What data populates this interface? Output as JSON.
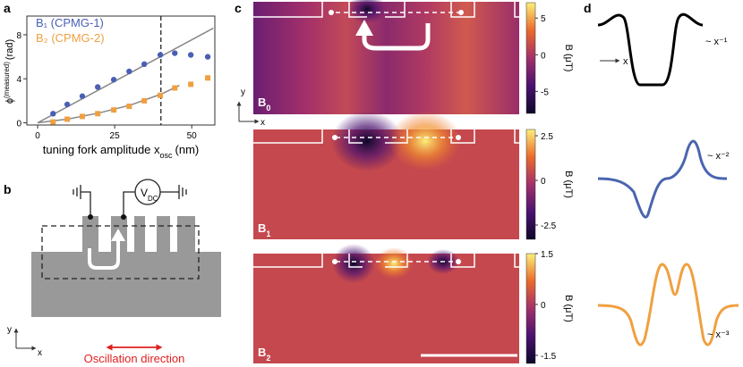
{
  "panel_labels": [
    "a",
    "b",
    "c",
    "d"
  ],
  "chart_data": [
    {
      "type": "scatter",
      "series": [
        {
          "name": "B₁ (CPMG-1)",
          "color": "#4a5fb5",
          "marker": "circle",
          "x": [
            5,
            9.6,
            14.5,
            19.5,
            24.7,
            29.7,
            34.6,
            39.8,
            44.5,
            49.7,
            55.2
          ],
          "values": [
            0.83,
            1.67,
            2.42,
            3.25,
            3.92,
            4.67,
            5.33,
            6.17,
            6.33,
            6.17,
            6.0
          ]
        },
        {
          "name": "B₂ (CPMG-2)",
          "color": "#f0a040",
          "marker": "square",
          "x": [
            5,
            9.6,
            14.5,
            19.5,
            24.7,
            29.7,
            34.6,
            39.8,
            44.5,
            49.7,
            55.2
          ],
          "values": [
            0.08,
            0.33,
            0.58,
            0.83,
            1.17,
            1.5,
            2.0,
            2.5,
            3.17,
            3.5,
            4.08
          ]
        }
      ],
      "fits": [
        {
          "color": "#888888",
          "x": [
            0,
            57
          ],
          "values": [
            0,
            8.6
          ]
        },
        {
          "color": "#888888",
          "x": [
            0,
            10,
            20,
            30,
            40,
            46
          ],
          "values": [
            0,
            0.35,
            0.9,
            1.6,
            2.6,
            3.4
          ]
        }
      ],
      "vline": 40,
      "y_label": {
        "symbol": "ϕ",
        "superscript": "(measured)",
        "unit": "(rad)"
      },
      "x_label": {
        "text": "tuning fork amplitude x",
        "subscript": "osc",
        "unit": "(nm)"
      },
      "xlim": [
        -3.5,
        57.5
      ],
      "xticks": [
        0,
        25,
        50
      ],
      "ylim": [
        -0.2,
        9.7
      ],
      "yticks": [
        0,
        4,
        8
      ]
    },
    {
      "type": "heatmap",
      "label": "B",
      "label_sub": "0",
      "colorbar_label": "B (μT)",
      "clim": [
        -8,
        7.1
      ],
      "cticks": [
        5,
        0,
        -5
      ]
    },
    {
      "type": "heatmap",
      "label": "B",
      "label_sub": "1",
      "colorbar_label": "B (μT)",
      "clim": [
        -3.3,
        2.85
      ],
      "cticks": [
        2.5,
        0,
        -2.5
      ]
    },
    {
      "type": "heatmap",
      "label": "B",
      "label_sub": "2",
      "colorbar_label": "B (μT)",
      "clim": [
        -1.74,
        1.5
      ],
      "cticks": [
        1.5,
        0,
        -1.5
      ]
    }
  ],
  "diagram": {
    "source": "V",
    "source_sub": "DC",
    "axis_y": "y",
    "axis_x": "x",
    "caption": "Oscillation direction",
    "map_axis_y": "y",
    "map_axis_x": "x"
  },
  "profiles": {
    "axis": "x",
    "labels": [
      "~ x⁻¹",
      "~ x⁻²",
      "~ x⁻³"
    ]
  }
}
